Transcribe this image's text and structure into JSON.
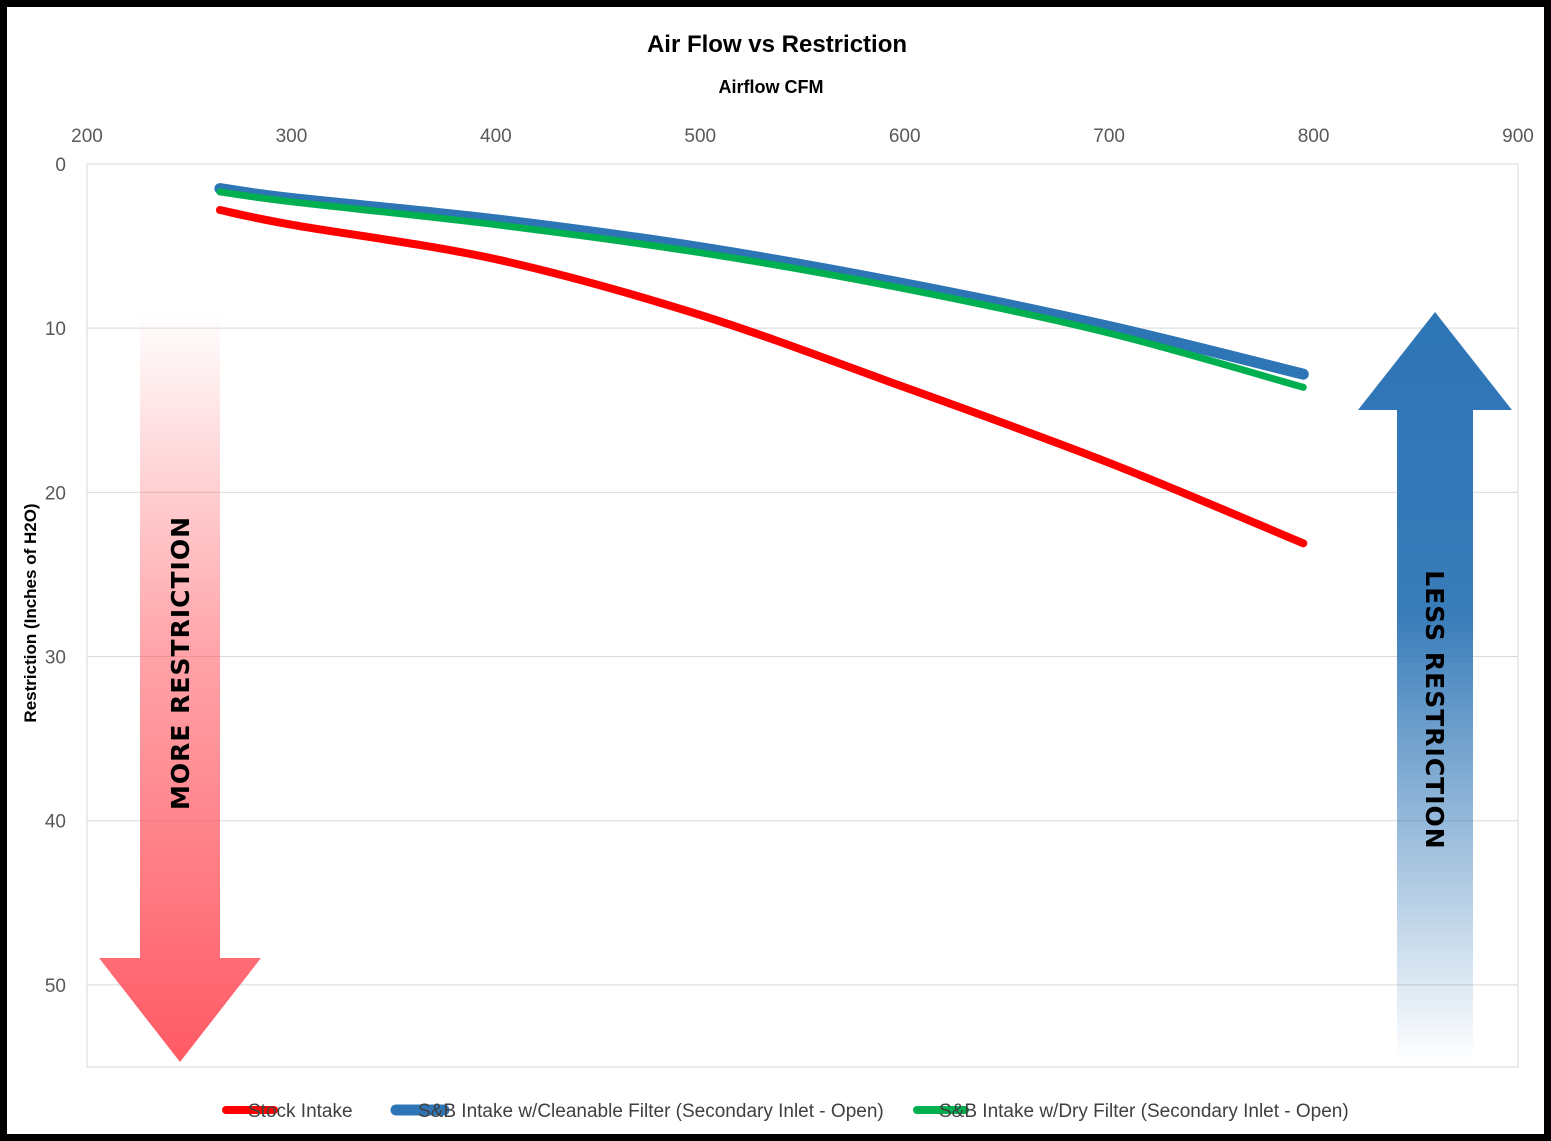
{
  "chart_data": {
    "type": "line",
    "title": "Air Flow vs Restriction",
    "xlabel": "Airflow CFM",
    "ylabel": "Restriction (Inches of H2O)",
    "xlim": [
      200,
      900
    ],
    "ylim": [
      0,
      55
    ],
    "y_inverted": true,
    "x_axis_position": "top",
    "x_ticks": [
      "200",
      "300",
      "400",
      "500",
      "600",
      "700",
      "800",
      "900"
    ],
    "y_ticks": [
      "0",
      "10",
      "20",
      "30",
      "40",
      "50"
    ],
    "grid": true,
    "legend_position": "bottom",
    "series": [
      {
        "name": "Stock Intake",
        "color": "#ff0000",
        "x": [
          265,
          300,
          400,
          500,
          600,
          700,
          795
        ],
        "y": [
          2.8,
          3.7,
          5.8,
          9.2,
          13.6,
          18.2,
          23.1
        ]
      },
      {
        "name": "S&B Intake w/Cleanable Filter (Secondary Inlet - Open)",
        "color": "#2e75b6",
        "x": [
          265,
          300,
          400,
          500,
          600,
          700,
          795
        ],
        "y": [
          1.5,
          2.1,
          3.4,
          5.1,
          7.3,
          9.9,
          12.8
        ]
      },
      {
        "name": "S&B Intake w/Dry Filter (Secondary Inlet - Open)",
        "color": "#00b050",
        "x": [
          265,
          300,
          400,
          500,
          600,
          700,
          795
        ],
        "y": [
          1.7,
          2.3,
          3.7,
          5.4,
          7.6,
          10.3,
          13.6
        ]
      }
    ],
    "annotations": {
      "left_arrow": {
        "text": "MORE RESTRICTION",
        "color": "#ff5a64",
        "direction": "down"
      },
      "right_arrow": {
        "text": "LESS RESTRICTION",
        "color": "#2e75b6",
        "direction": "up"
      }
    }
  }
}
